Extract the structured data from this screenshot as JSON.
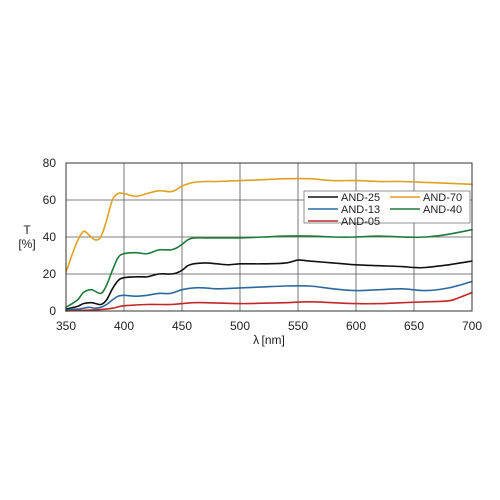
{
  "chart_data": {
    "type": "line",
    "title": "",
    "xlabel": "λ [nm]",
    "ylabel_lines": [
      "T",
      "[%]"
    ],
    "xlim": [
      350,
      700
    ],
    "ylim": [
      0,
      80
    ],
    "x_ticks": [
      350,
      400,
      450,
      500,
      550,
      600,
      650,
      700
    ],
    "y_ticks": [
      0,
      20,
      40,
      60,
      80
    ],
    "grid": true,
    "legend_position": "top-right",
    "series": [
      {
        "name": "AND-25",
        "color": "#111111",
        "x": [
          350,
          360,
          365,
          372,
          380,
          385,
          390,
          395,
          400,
          410,
          420,
          430,
          440,
          445,
          450,
          455,
          460,
          470,
          480,
          490,
          500,
          520,
          540,
          550,
          560,
          580,
          600,
          620,
          640,
          650,
          660,
          680,
          700
        ],
        "y": [
          1,
          2.5,
          4,
          4.5,
          3.5,
          6,
          12,
          16.5,
          18,
          18.5,
          18.5,
          20,
          20,
          20.5,
          22,
          24.5,
          25.5,
          26,
          25.5,
          25,
          25.5,
          25.5,
          26,
          27.5,
          27,
          26,
          25,
          24.5,
          24,
          23.5,
          23.5,
          25,
          27
        ]
      },
      {
        "name": "AND-70",
        "color": "#e0a020",
        "x": [
          350,
          355,
          360,
          365,
          370,
          375,
          380,
          385,
          390,
          395,
          400,
          410,
          420,
          430,
          440,
          445,
          450,
          460,
          470,
          480,
          500,
          520,
          540,
          560,
          580,
          600,
          620,
          640,
          660,
          680,
          700
        ],
        "y": [
          21,
          30,
          38,
          43,
          41,
          38.5,
          40,
          49,
          60,
          63.5,
          63.5,
          62,
          63.5,
          65,
          64.5,
          65.5,
          67.5,
          69.5,
          70,
          70,
          70.5,
          71,
          71.5,
          71.5,
          70.5,
          70.5,
          70,
          70,
          69.5,
          69,
          68.5
        ]
      },
      {
        "name": "AND-13",
        "color": "#2a6aa0",
        "x": [
          350,
          360,
          365,
          370,
          375,
          380,
          385,
          390,
          395,
          400,
          410,
          420,
          430,
          440,
          450,
          460,
          470,
          480,
          500,
          520,
          540,
          560,
          580,
          600,
          620,
          640,
          660,
          680,
          700
        ],
        "y": [
          0.5,
          1,
          1.5,
          2,
          1.5,
          2,
          3.5,
          6,
          8,
          8.5,
          8,
          8.5,
          9.5,
          9.5,
          11.5,
          12.5,
          12.5,
          12,
          12.5,
          13,
          13.5,
          13.5,
          12,
          11,
          11.5,
          12,
          11,
          12.5,
          16
        ]
      },
      {
        "name": "AND-40",
        "color": "#1e7a3a",
        "x": [
          350,
          360,
          365,
          372,
          380,
          385,
          390,
          395,
          400,
          410,
          420,
          430,
          440,
          445,
          450,
          455,
          460,
          470,
          480,
          500,
          520,
          540,
          560,
          580,
          600,
          620,
          640,
          660,
          680,
          700
        ],
        "y": [
          2,
          6,
          10,
          11.5,
          9.5,
          14,
          22,
          29,
          31,
          31.5,
          31,
          33,
          33,
          34,
          36,
          38.5,
          39.5,
          39.5,
          39.5,
          39.5,
          40,
          40.5,
          40.5,
          40,
          40,
          40.5,
          40,
          40,
          41.5,
          44
        ]
      },
      {
        "name": "AND-05",
        "color": "#c0282a",
        "x": [
          350,
          360,
          370,
          380,
          390,
          395,
          400,
          420,
          440,
          450,
          460,
          470,
          500,
          520,
          540,
          560,
          580,
          600,
          620,
          640,
          660,
          680,
          690,
          700
        ],
        "y": [
          0,
          0.3,
          0.5,
          0.8,
          1.5,
          2.2,
          2.8,
          3.5,
          3.5,
          4,
          4.5,
          4.5,
          4,
          4.2,
          4.5,
          5,
          4.5,
          4,
          4,
          4.5,
          5,
          5.5,
          7.5,
          10
        ]
      }
    ]
  }
}
